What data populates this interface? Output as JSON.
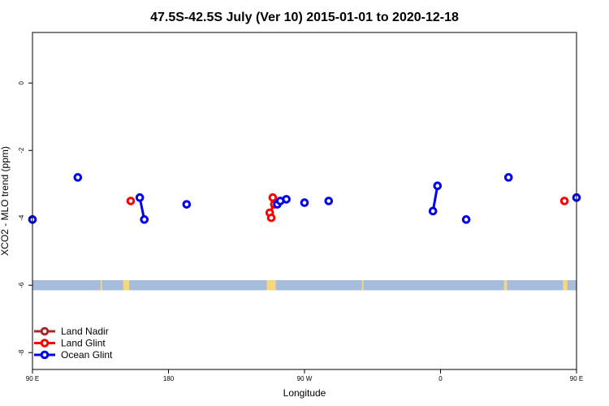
{
  "chart_data": {
    "type": "scatter",
    "title": "47.5S-42.5S July (Ver 10)   2015-01-01 to 2020-12-18",
    "xlabel": "Longitude",
    "ylabel": "XCO2 - MLO trend (ppm)",
    "xlim": [
      90,
      450
    ],
    "ylim": [
      -8.5,
      1.5
    ],
    "x_ticks": [
      {
        "value": 90,
        "label": "90 E"
      },
      {
        "value": 180,
        "label": "180"
      },
      {
        "value": 270,
        "label": "90 W"
      },
      {
        "value": 360,
        "label": "0"
      },
      {
        "value": 450,
        "label": "90 E"
      }
    ],
    "y_ticks": [
      {
        "value": 0,
        "label": "0"
      },
      {
        "value": -2,
        "label": "-2"
      },
      {
        "value": -4,
        "label": "-4"
      },
      {
        "value": -6,
        "label": "-6"
      },
      {
        "value": -8,
        "label": "-8"
      }
    ],
    "land_strip": {
      "y_range": [
        -6.15,
        -5.85
      ],
      "ocean_color": "#a6bcdc",
      "land_color": "#f5d77e",
      "land_segments": [
        [
          135,
          136
        ],
        [
          150,
          154
        ],
        [
          245,
          251
        ],
        [
          308,
          309
        ],
        [
          402,
          404
        ],
        [
          441,
          444
        ]
      ]
    },
    "legend": {
      "placement": "bottom-left",
      "entries": [
        {
          "name": "Land Nadir",
          "color": "#a52a2a"
        },
        {
          "name": "Land Glint",
          "color": "#ff0000"
        },
        {
          "name": "Ocean Glint",
          "color": "#0000ee"
        }
      ]
    },
    "series": [
      {
        "name": "Land Nadir",
        "color": "#a52a2a",
        "points": []
      },
      {
        "name": "Land Glint",
        "color": "#ff0000",
        "points": [
          {
            "x": 155,
            "y": -3.5
          },
          {
            "x": 247,
            "y": -3.85
          },
          {
            "x": 248,
            "y": -4.0
          },
          {
            "x": 249,
            "y": -3.4
          },
          {
            "x": 250,
            "y": -3.6
          },
          {
            "x": 442,
            "y": -3.5
          }
        ]
      },
      {
        "name": "Ocean Glint",
        "color": "#0000ee",
        "points": [
          {
            "x": 90,
            "y": -4.05
          },
          {
            "x": 120,
            "y": -2.8
          },
          {
            "x": 161,
            "y": -3.4
          },
          {
            "x": 164,
            "y": -4.05
          },
          {
            "x": 192,
            "y": -3.6
          },
          {
            "x": 252,
            "y": -3.6
          },
          {
            "x": 254,
            "y": -3.5
          },
          {
            "x": 258,
            "y": -3.45
          },
          {
            "x": 270,
            "y": -3.55
          },
          {
            "x": 286,
            "y": -3.5
          },
          {
            "x": 355,
            "y": -3.8
          },
          {
            "x": 358,
            "y": -3.05
          },
          {
            "x": 377,
            "y": -4.05
          },
          {
            "x": 405,
            "y": -2.8
          },
          {
            "x": 450,
            "y": -3.4
          }
        ]
      }
    ],
    "lines": [
      {
        "series": "Ocean Glint",
        "color": "#0000ee",
        "points": [
          {
            "x": 161,
            "y": -3.4
          },
          {
            "x": 164,
            "y": -4.05
          }
        ]
      },
      {
        "series": "Ocean Glint",
        "color": "#0000ee",
        "points": [
          {
            "x": 355,
            "y": -3.8
          },
          {
            "x": 358,
            "y": -3.05
          }
        ]
      },
      {
        "series": "Land Glint",
        "color": "#ff0000",
        "points": [
          {
            "x": 247,
            "y": -3.85
          },
          {
            "x": 248,
            "y": -4.0
          },
          {
            "x": 249,
            "y": -3.4
          },
          {
            "x": 250,
            "y": -3.6
          }
        ]
      },
      {
        "series": "Ocean Glint",
        "color": "#0000ee",
        "points": [
          {
            "x": 252,
            "y": -3.6
          },
          {
            "x": 254,
            "y": -3.5
          },
          {
            "x": 258,
            "y": -3.45
          }
        ]
      }
    ]
  }
}
